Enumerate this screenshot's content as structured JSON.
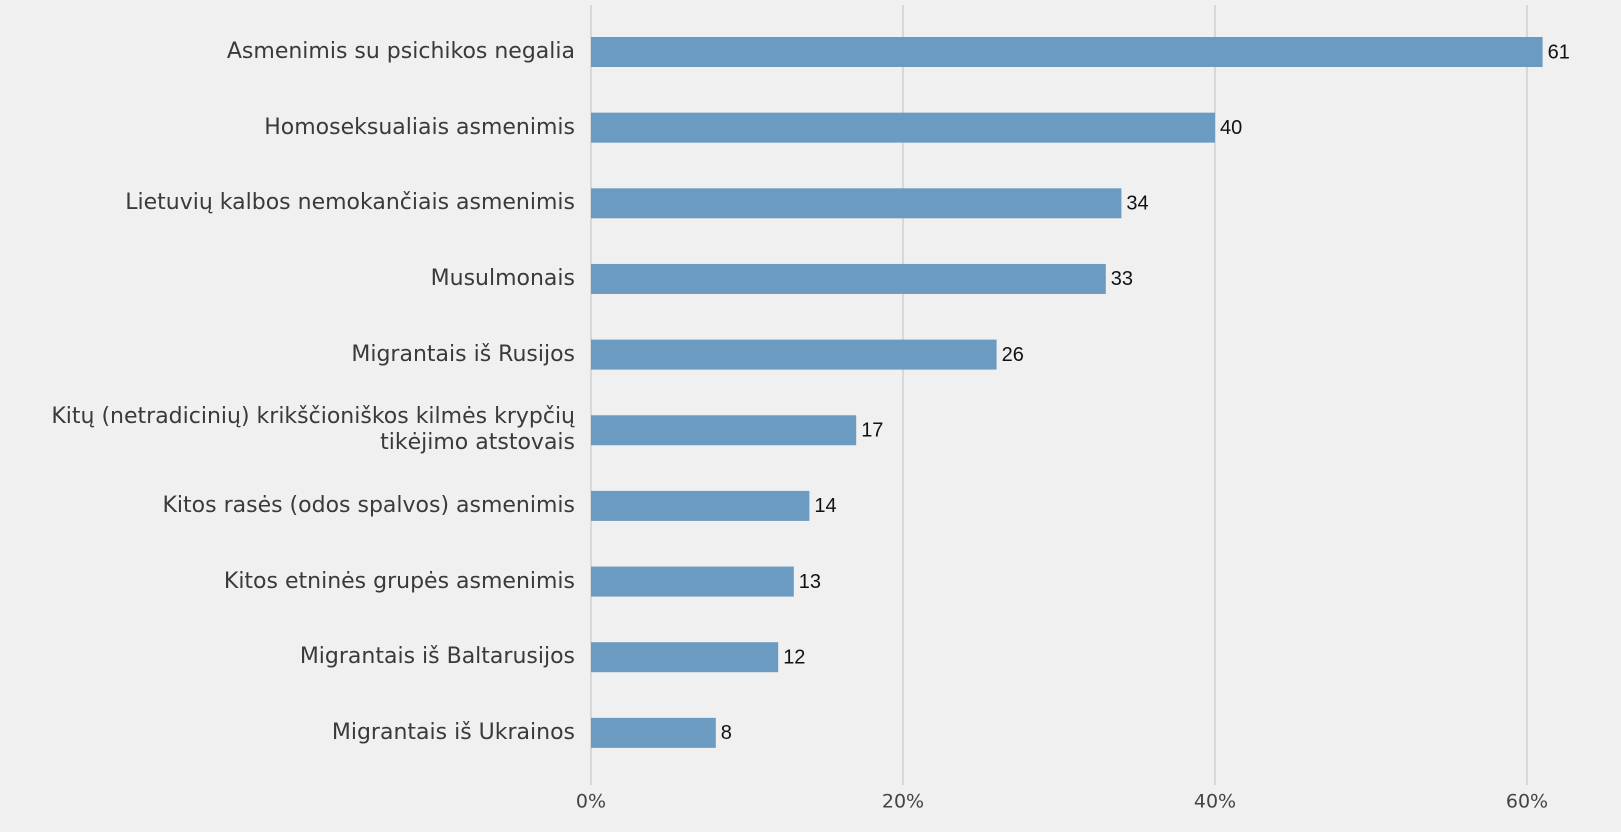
{
  "chart_data": {
    "type": "barh",
    "categories": [
      "Asmenimis su psichikos negalia",
      "Homoseksualiais asmenimis",
      "Lietuvių kalbos nemokančiais asmenimis",
      "Musulmonais",
      "Migrantais iš Rusijos",
      "Kitų (netradicinių) krikščioniškos kilmės krypčių\ntikėjimo atstovais",
      "Kitos rasės (odos spalvos) asmenimis",
      "Kitos etninės grupės asmenimis",
      "Migrantais iš Baltarusijos",
      "Migrantais iš Ukrainos"
    ],
    "values": [
      61,
      40,
      34,
      33,
      26,
      17,
      14,
      13,
      12,
      8
    ],
    "color": "#6b9bc1",
    "xlim": [
      0,
      60
    ],
    "xticks": [
      {
        "value": 0,
        "label": "0%"
      },
      {
        "value": 20,
        "label": "20%"
      },
      {
        "value": 40,
        "label": "40%"
      },
      {
        "value": 60,
        "label": "60%"
      }
    ],
    "grid": true
  }
}
